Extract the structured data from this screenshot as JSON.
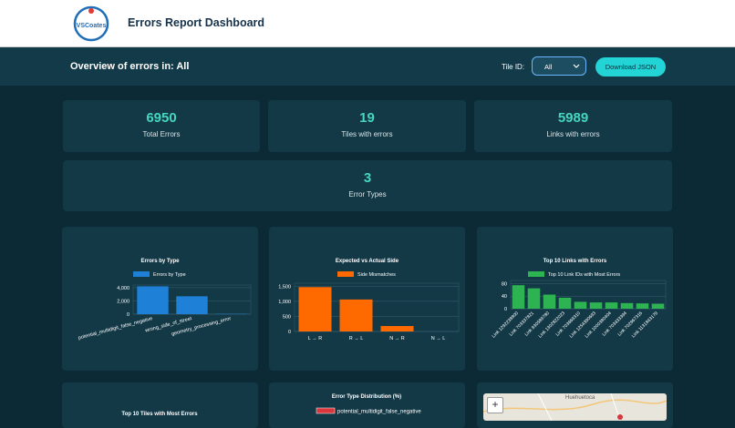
{
  "header": {
    "logo": "VSCoates",
    "title": "Errors Report Dashboard"
  },
  "toolbar": {
    "overview": "Overview of errors in: All",
    "tile_label": "Tile ID:",
    "tile_select": "All",
    "download": "Download JSON"
  },
  "stats": [
    {
      "value": "6950",
      "label": "Total Errors"
    },
    {
      "value": "19",
      "label": "Tiles with errors"
    },
    {
      "value": "5989",
      "label": "Links with errors"
    },
    {
      "value": "3",
      "label": "Error Types"
    }
  ],
  "chart_data": [
    {
      "type": "bar",
      "title": "Errors by Type",
      "categories": [
        "potential_multidigit_false_negative",
        "wrong_side_of_street",
        "geometry_processing_error"
      ],
      "series": [
        {
          "name": "Errors by Type",
          "color": "#1f80d8",
          "values": [
            4200,
            2700,
            50
          ]
        }
      ],
      "ylim": [
        0,
        4400
      ],
      "yticks": [
        0,
        {
          "value": 2000,
          "label": "2,000"
        },
        {
          "value": 4000,
          "label": "4,000"
        }
      ],
      "grid": true
    },
    {
      "type": "bar",
      "title": "Expected vs Actual Side",
      "categories": [
        "L → R",
        "R → L",
        "N → R",
        "N → L"
      ],
      "series": [
        {
          "name": "Side Mismatches",
          "color": "#ff6a00",
          "values": [
            1470,
            1060,
            180,
            0
          ]
        }
      ],
      "ylim": [
        0,
        1600
      ],
      "yticks": [
        0,
        500,
        {
          "value": 1000,
          "label": "1,000"
        },
        {
          "value": 1500,
          "label": "1,500"
        }
      ],
      "grid": true
    },
    {
      "type": "bar",
      "title": "Top 10 Links with Errors",
      "categories": [
        "Link 1292238800",
        "Link 703337821",
        "Link 930589780",
        "Link 1302822023",
        "Link 703669310",
        "Link 1254390693",
        "Link 1000380404",
        "Link 703433394",
        "Link 702967316",
        "Link 1131843179"
      ],
      "series": [
        {
          "name": "Top 10 Link IDs with Most Errors",
          "color": "#2eb352",
          "values": [
            75,
            65,
            45,
            35,
            22,
            20,
            20,
            18,
            17,
            16
          ]
        }
      ],
      "ylim": [
        0,
        90
      ],
      "yticks": [
        0,
        40,
        80
      ],
      "grid": true
    }
  ],
  "partial_panels": {
    "tiles_title": "Top 10 Tiles with Most Errors",
    "distribution_title": "Error Type Distribution (%)",
    "distribution_legend": "potential_multidigit_false_negative"
  },
  "map": {
    "zoom_in": "+",
    "place": "Huehuetoca"
  }
}
